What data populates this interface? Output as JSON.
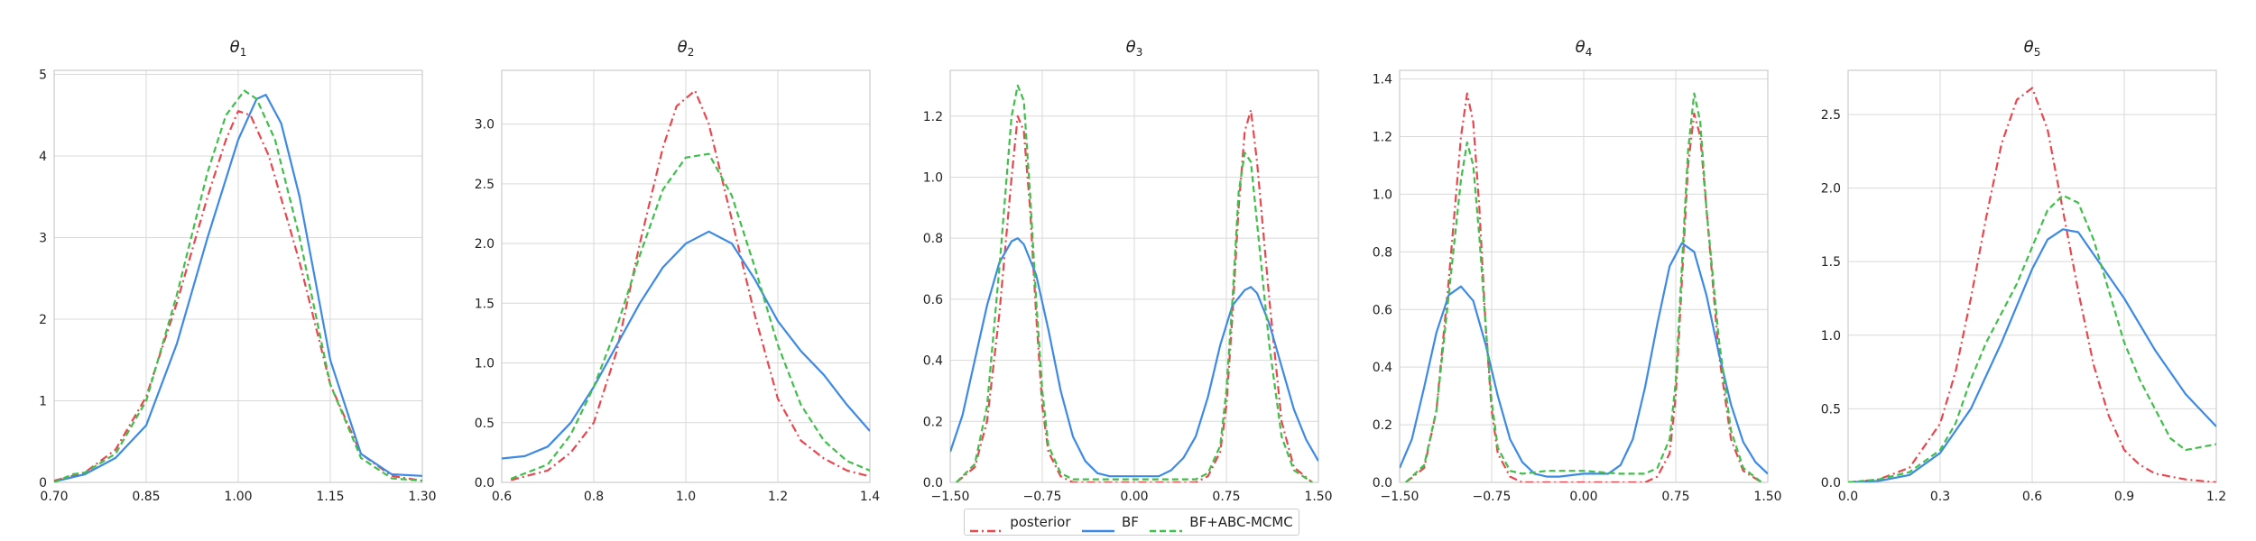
{
  "colors": {
    "posterior": "#e8474f",
    "BF": "#3d8ae6",
    "BF+ABC-MCMC": "#3fbf4a",
    "grid": "#d9d9d9",
    "axis": "#cccccc",
    "text": "#222222"
  },
  "legend": {
    "placement": "bottom-center",
    "items": [
      {
        "name": "posterior",
        "style": "dashdot"
      },
      {
        "name": "BF",
        "style": "solid"
      },
      {
        "name": "BF+ABC-MCMC",
        "style": "dashed"
      }
    ]
  },
  "chart_data": [
    {
      "type": "line",
      "title": "θ1",
      "title_base": "θ",
      "title_sub": "1",
      "xlim": [
        0.7,
        1.3
      ],
      "ylim": [
        0,
        5.05
      ],
      "xticks": [
        0.7,
        0.85,
        1.0,
        1.15,
        1.3
      ],
      "xtick_labels": [
        "0.70",
        "0.85",
        "1.00",
        "1.15",
        "1.30"
      ],
      "yticks": [
        0,
        1,
        2,
        3,
        4,
        5
      ],
      "ytick_labels": [
        "0",
        "1",
        "2",
        "3",
        "4",
        "5"
      ],
      "grid": true,
      "series": [
        {
          "name": "posterior",
          "x": [
            0.7,
            0.75,
            0.8,
            0.85,
            0.9,
            0.95,
            0.98,
            1.0,
            1.02,
            1.05,
            1.1,
            1.15,
            1.2,
            1.25,
            1.3
          ],
          "y": [
            0.02,
            0.12,
            0.4,
            1.05,
            2.2,
            3.5,
            4.2,
            4.55,
            4.5,
            4.0,
            2.7,
            1.2,
            0.35,
            0.08,
            0.02
          ]
        },
        {
          "name": "BF",
          "x": [
            0.7,
            0.75,
            0.8,
            0.85,
            0.9,
            0.95,
            1.0,
            1.03,
            1.045,
            1.07,
            1.1,
            1.15,
            1.2,
            1.25,
            1.3
          ],
          "y": [
            0.01,
            0.1,
            0.3,
            0.7,
            1.7,
            3.0,
            4.2,
            4.7,
            4.75,
            4.4,
            3.5,
            1.5,
            0.35,
            0.1,
            0.08
          ]
        },
        {
          "name": "BF+ABC-MCMC",
          "x": [
            0.7,
            0.73,
            0.75,
            0.8,
            0.85,
            0.9,
            0.95,
            0.98,
            1.01,
            1.03,
            1.06,
            1.1,
            1.15,
            1.2,
            1.25,
            1.3
          ],
          "y": [
            0.0,
            0.1,
            0.12,
            0.35,
            1.0,
            2.3,
            3.8,
            4.5,
            4.8,
            4.7,
            4.2,
            3.0,
            1.2,
            0.3,
            0.05,
            0.02
          ]
        }
      ]
    },
    {
      "type": "line",
      "title": "θ2",
      "title_base": "θ",
      "title_sub": "2",
      "xlim": [
        0.6,
        1.4
      ],
      "ylim": [
        0,
        3.45
      ],
      "xticks": [
        0.6,
        0.8,
        1.0,
        1.2,
        1.4
      ],
      "xtick_labels": [
        "0.6",
        "0.8",
        "1.0",
        "1.2",
        "1.4"
      ],
      "yticks": [
        0,
        0.5,
        1.0,
        1.5,
        2.0,
        2.5,
        3.0
      ],
      "ytick_labels": [
        "0.0",
        "0.5",
        "1.0",
        "1.5",
        "2.0",
        "2.5",
        "3.0"
      ],
      "grid": true,
      "series": [
        {
          "name": "posterior",
          "x": [
            0.62,
            0.7,
            0.75,
            0.8,
            0.85,
            0.9,
            0.95,
            0.98,
            1.02,
            1.05,
            1.1,
            1.15,
            1.2,
            1.25,
            1.3,
            1.35,
            1.4
          ],
          "y": [
            0.02,
            0.1,
            0.25,
            0.5,
            1.1,
            2.0,
            2.8,
            3.15,
            3.28,
            3.0,
            2.2,
            1.4,
            0.7,
            0.35,
            0.2,
            0.1,
            0.05
          ]
        },
        {
          "name": "BF",
          "x": [
            0.6,
            0.65,
            0.7,
            0.75,
            0.8,
            0.85,
            0.9,
            0.95,
            1.0,
            1.05,
            1.1,
            1.15,
            1.2,
            1.25,
            1.3,
            1.35,
            1.4
          ],
          "y": [
            0.2,
            0.22,
            0.3,
            0.5,
            0.8,
            1.15,
            1.5,
            1.8,
            2.0,
            2.1,
            2.0,
            1.7,
            1.35,
            1.1,
            0.9,
            0.65,
            0.43
          ]
        },
        {
          "name": "BF+ABC-MCMC",
          "x": [
            0.62,
            0.7,
            0.75,
            0.8,
            0.85,
            0.9,
            0.95,
            1.0,
            1.05,
            1.1,
            1.15,
            1.2,
            1.25,
            1.3,
            1.35,
            1.4
          ],
          "y": [
            0.03,
            0.15,
            0.4,
            0.8,
            1.3,
            1.9,
            2.45,
            2.72,
            2.75,
            2.4,
            1.8,
            1.15,
            0.65,
            0.35,
            0.18,
            0.1
          ]
        }
      ]
    },
    {
      "type": "line",
      "title": "θ3",
      "title_base": "θ",
      "title_sub": "3",
      "xlim": [
        -1.5,
        1.5
      ],
      "ylim": [
        0,
        1.35
      ],
      "xticks": [
        -1.5,
        -0.75,
        0,
        0.75,
        1.5
      ],
      "xtick_labels": [
        "−1.50",
        "−0.75",
        "0.00",
        "0.75",
        "1.50"
      ],
      "yticks": [
        0,
        0.2,
        0.4,
        0.6,
        0.8,
        1.0,
        1.2
      ],
      "ytick_labels": [
        "0.0",
        "0.2",
        "0.4",
        "0.6",
        "0.8",
        "1.0",
        "1.2"
      ],
      "grid": true,
      "series": [
        {
          "name": "posterior",
          "x": [
            -1.45,
            -1.3,
            -1.2,
            -1.1,
            -1.0,
            -0.95,
            -0.9,
            -0.85,
            -0.8,
            -0.75,
            -0.7,
            -0.6,
            -0.5,
            0,
            0.5,
            0.6,
            0.7,
            0.75,
            0.8,
            0.85,
            0.9,
            0.95,
            1.0,
            1.1,
            1.2,
            1.3,
            1.45
          ],
          "y": [
            0.0,
            0.05,
            0.2,
            0.55,
            1.0,
            1.2,
            1.15,
            0.9,
            0.55,
            0.25,
            0.1,
            0.02,
            0.0,
            0.0,
            0.0,
            0.02,
            0.1,
            0.25,
            0.55,
            0.9,
            1.15,
            1.22,
            1.05,
            0.6,
            0.2,
            0.05,
            0.0
          ]
        },
        {
          "name": "BF",
          "x": [
            -1.5,
            -1.4,
            -1.3,
            -1.2,
            -1.1,
            -1.0,
            -0.95,
            -0.9,
            -0.8,
            -0.7,
            -0.6,
            -0.5,
            -0.4,
            -0.3,
            -0.2,
            0,
            0.2,
            0.3,
            0.4,
            0.5,
            0.6,
            0.7,
            0.8,
            0.9,
            0.95,
            1.0,
            1.1,
            1.2,
            1.3,
            1.4,
            1.5
          ],
          "y": [
            0.1,
            0.22,
            0.4,
            0.58,
            0.72,
            0.79,
            0.8,
            0.78,
            0.68,
            0.5,
            0.3,
            0.15,
            0.07,
            0.03,
            0.02,
            0.02,
            0.02,
            0.04,
            0.08,
            0.15,
            0.28,
            0.45,
            0.58,
            0.63,
            0.64,
            0.62,
            0.52,
            0.38,
            0.24,
            0.14,
            0.07
          ]
        },
        {
          "name": "BF+ABC-MCMC",
          "x": [
            -1.45,
            -1.3,
            -1.2,
            -1.1,
            -1.0,
            -0.95,
            -0.9,
            -0.85,
            -0.8,
            -0.75,
            -0.7,
            -0.6,
            -0.5,
            0,
            0.5,
            0.6,
            0.7,
            0.75,
            0.8,
            0.85,
            0.9,
            0.95,
            1.0,
            1.1,
            1.2,
            1.3,
            1.45
          ],
          "y": [
            0.0,
            0.06,
            0.25,
            0.7,
            1.2,
            1.3,
            1.25,
            0.95,
            0.6,
            0.3,
            0.12,
            0.03,
            0.01,
            0.01,
            0.01,
            0.03,
            0.12,
            0.3,
            0.6,
            0.95,
            1.08,
            1.05,
            0.85,
            0.45,
            0.15,
            0.04,
            0.0
          ]
        }
      ]
    },
    {
      "type": "line",
      "title": "θ4",
      "title_base": "θ",
      "title_sub": "4",
      "xlim": [
        -1.5,
        1.5
      ],
      "ylim": [
        0,
        1.43
      ],
      "xticks": [
        -1.5,
        -0.75,
        0,
        0.75,
        1.5
      ],
      "xtick_labels": [
        "−1.50",
        "−0.75",
        "0.00",
        "0.75",
        "1.50"
      ],
      "yticks": [
        0,
        0.2,
        0.4,
        0.6,
        0.8,
        1.0,
        1.2,
        1.4
      ],
      "ytick_labels": [
        "0.0",
        "0.2",
        "0.4",
        "0.6",
        "0.8",
        "1.0",
        "1.2",
        "1.4"
      ],
      "grid": true,
      "series": [
        {
          "name": "posterior",
          "x": [
            -1.45,
            -1.3,
            -1.2,
            -1.1,
            -1.0,
            -0.95,
            -0.9,
            -0.85,
            -0.8,
            -0.75,
            -0.7,
            -0.6,
            -0.5,
            0,
            0.5,
            0.6,
            0.7,
            0.75,
            0.8,
            0.85,
            0.9,
            0.95,
            1.0,
            1.1,
            1.2,
            1.3,
            1.45
          ],
          "y": [
            0.0,
            0.05,
            0.25,
            0.7,
            1.2,
            1.35,
            1.25,
            0.95,
            0.55,
            0.25,
            0.1,
            0.02,
            0.0,
            0.0,
            0.0,
            0.02,
            0.1,
            0.3,
            0.7,
            1.1,
            1.28,
            1.2,
            0.95,
            0.45,
            0.15,
            0.04,
            0.0
          ]
        },
        {
          "name": "BF",
          "x": [
            -1.5,
            -1.4,
            -1.3,
            -1.2,
            -1.1,
            -1.0,
            -0.9,
            -0.8,
            -0.7,
            -0.6,
            -0.5,
            -0.4,
            -0.3,
            -0.2,
            0,
            0.2,
            0.3,
            0.4,
            0.5,
            0.6,
            0.7,
            0.8,
            0.9,
            1.0,
            1.1,
            1.2,
            1.3,
            1.4,
            1.5
          ],
          "y": [
            0.05,
            0.15,
            0.33,
            0.52,
            0.65,
            0.68,
            0.63,
            0.48,
            0.3,
            0.15,
            0.07,
            0.03,
            0.02,
            0.02,
            0.03,
            0.03,
            0.06,
            0.15,
            0.33,
            0.55,
            0.75,
            0.83,
            0.8,
            0.65,
            0.45,
            0.27,
            0.14,
            0.07,
            0.03
          ]
        },
        {
          "name": "BF+ABC-MCMC",
          "x": [
            -1.45,
            -1.3,
            -1.2,
            -1.1,
            -1.0,
            -0.95,
            -0.9,
            -0.85,
            -0.8,
            -0.75,
            -0.7,
            -0.6,
            -0.5,
            -0.3,
            0,
            0.3,
            0.5,
            0.6,
            0.7,
            0.75,
            0.8,
            0.85,
            0.9,
            0.95,
            1.0,
            1.1,
            1.2,
            1.3,
            1.45
          ],
          "y": [
            0.0,
            0.06,
            0.25,
            0.65,
            1.05,
            1.18,
            1.1,
            0.85,
            0.55,
            0.28,
            0.12,
            0.04,
            0.03,
            0.04,
            0.04,
            0.03,
            0.03,
            0.05,
            0.15,
            0.35,
            0.75,
            1.15,
            1.35,
            1.25,
            0.95,
            0.5,
            0.18,
            0.05,
            0.0
          ]
        }
      ]
    },
    {
      "type": "line",
      "title": "θ5",
      "title_base": "θ",
      "title_sub": "5",
      "xlim": [
        0,
        1.2
      ],
      "ylim": [
        0,
        2.8
      ],
      "xticks": [
        0,
        0.3,
        0.6,
        0.9,
        1.2
      ],
      "xtick_labels": [
        "0.0",
        "0.3",
        "0.6",
        "0.9",
        "1.2"
      ],
      "yticks": [
        0,
        0.5,
        1.0,
        1.5,
        2.0,
        2.5
      ],
      "ytick_labels": [
        "0.0",
        "0.5",
        "1.0",
        "1.5",
        "2.0",
        "2.5"
      ],
      "grid": true,
      "series": [
        {
          "name": "posterior",
          "x": [
            0.0,
            0.1,
            0.2,
            0.3,
            0.35,
            0.4,
            0.45,
            0.5,
            0.55,
            0.6,
            0.65,
            0.7,
            0.75,
            0.8,
            0.85,
            0.9,
            0.95,
            1.0,
            1.1,
            1.2
          ],
          "y": [
            0.0,
            0.02,
            0.1,
            0.4,
            0.75,
            1.25,
            1.8,
            2.3,
            2.6,
            2.68,
            2.4,
            1.85,
            1.3,
            0.8,
            0.45,
            0.22,
            0.12,
            0.06,
            0.02,
            0.0
          ]
        },
        {
          "name": "BF",
          "x": [
            0.0,
            0.1,
            0.2,
            0.3,
            0.4,
            0.5,
            0.6,
            0.65,
            0.7,
            0.75,
            0.8,
            0.9,
            1.0,
            1.1,
            1.2
          ],
          "y": [
            0.0,
            0.01,
            0.05,
            0.2,
            0.5,
            0.95,
            1.45,
            1.65,
            1.72,
            1.7,
            1.55,
            1.25,
            0.9,
            0.6,
            0.38
          ]
        },
        {
          "name": "BF+ABC-MCMC",
          "x": [
            0.0,
            0.1,
            0.2,
            0.3,
            0.35,
            0.4,
            0.45,
            0.5,
            0.55,
            0.6,
            0.65,
            0.7,
            0.75,
            0.8,
            0.85,
            0.9,
            0.95,
            1.0,
            1.05,
            1.1,
            1.15,
            1.2
          ],
          "y": [
            0.0,
            0.02,
            0.07,
            0.22,
            0.4,
            0.7,
            0.95,
            1.15,
            1.35,
            1.6,
            1.85,
            1.95,
            1.9,
            1.65,
            1.3,
            0.95,
            0.7,
            0.5,
            0.3,
            0.22,
            0.24,
            0.26
          ]
        }
      ]
    }
  ]
}
